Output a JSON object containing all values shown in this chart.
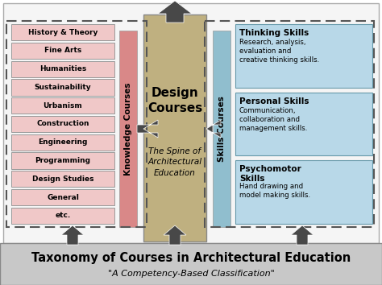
{
  "title": "Taxonomy of Courses in Architectural Education",
  "subtitle": "\"A Competency-Based Classification\"",
  "knowledge_courses": [
    "History & Theory",
    "Fine Arts",
    "Humanities",
    "Sustainability",
    "Urbanism",
    "Construction",
    "Engineering",
    "Programming",
    "Design Studies",
    "General",
    "etc."
  ],
  "knowledge_label": "Knowledge Courses",
  "design_label": "Design\nCourses",
  "design_sublabel": "The Spine of\nArchitectural\nEducation",
  "skills_label": "Skills Courses",
  "skills_items": [
    {
      "title": "Thinking Skills",
      "desc": "Research, analysis,\nevaluation and\ncreative thinking skills."
    },
    {
      "title": "Personal Skills",
      "desc": "Communication,\ncollaboration and\nmanagement skills."
    },
    {
      "title": "Psychomotor\nSkills",
      "desc": "Hand drawing and\nmodel making skills."
    }
  ],
  "knowledge_box_color": "#f0c8c8",
  "knowledge_col_color": "#d98888",
  "design_col_color": "#bfb080",
  "skills_col_color": "#90bece",
  "skills_box_color": "#b8d8e8",
  "title_bg": "#c8c8c8",
  "outer_bg": "#ffffff",
  "diagram_bg": "#f5f5f5",
  "arrow_color": "#484848",
  "dashed_color": "#555555",
  "text_color": "#000000"
}
